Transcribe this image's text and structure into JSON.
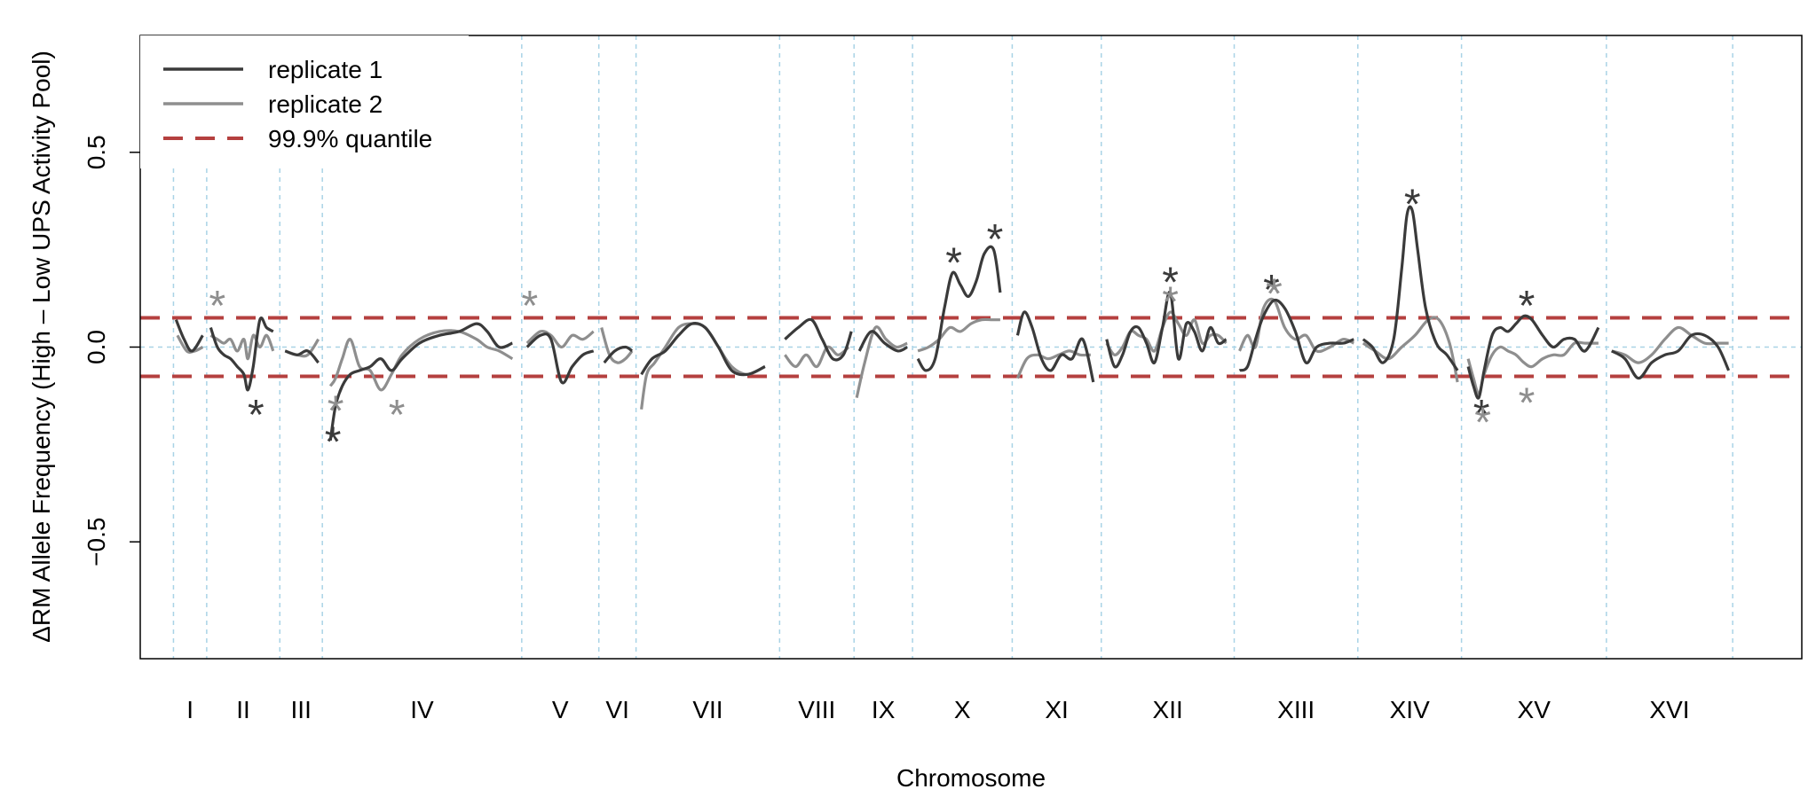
{
  "chart_data": {
    "type": "line",
    "xlabel": "Chromosome",
    "ylabel": "ΔRM Allele Frequency (High – Low UPS Activity Pool)",
    "ylim": [
      -0.8,
      0.8
    ],
    "yticks": [
      -0.5,
      0.0,
      0.5
    ],
    "ytick_labels": [
      "−0.5",
      "0.0",
      "0.5"
    ],
    "threshold": 0.075,
    "colors": {
      "replicate_1": "#3a3a3a",
      "replicate_2": "#8e8e8e",
      "quantile": "#b5403f",
      "chrom_divider": "#a9d3e6",
      "zero_line": "#a9d3e6"
    },
    "legend": {
      "position": "top-left",
      "entries": [
        {
          "label": "replicate 1",
          "style": "solid",
          "color": "#3a3a3a"
        },
        {
          "label": "replicate 2",
          "style": "solid",
          "color": "#8e8e8e"
        },
        {
          "label": "99.9% quantile",
          "style": "dashed",
          "color": "#b5403f"
        }
      ]
    },
    "chromosomes": [
      {
        "name": "I",
        "start": 0.0,
        "end": 0.25
      },
      {
        "name": "II",
        "start": 0.25,
        "end": 0.8
      },
      {
        "name": "III",
        "start": 0.8,
        "end": 1.12
      },
      {
        "name": "IV",
        "start": 1.12,
        "end": 2.62
      },
      {
        "name": "V",
        "start": 2.62,
        "end": 3.2
      },
      {
        "name": "VI",
        "start": 3.2,
        "end": 3.48
      },
      {
        "name": "VII",
        "start": 3.48,
        "end": 4.56
      },
      {
        "name": "VIII",
        "start": 4.56,
        "end": 5.12
      },
      {
        "name": "IX",
        "start": 5.12,
        "end": 5.56
      },
      {
        "name": "X",
        "start": 5.56,
        "end": 6.31
      },
      {
        "name": "XI",
        "start": 6.31,
        "end": 6.98
      },
      {
        "name": "XII",
        "start": 6.98,
        "end": 7.98
      },
      {
        "name": "XIII",
        "start": 7.98,
        "end": 8.91
      },
      {
        "name": "XIV",
        "start": 8.91,
        "end": 9.69
      },
      {
        "name": "XV",
        "start": 9.69,
        "end": 10.78
      },
      {
        "name": "XVI",
        "start": 10.78,
        "end": 11.73
      }
    ],
    "series": [
      {
        "name": "replicate 1",
        "color": "#3a3a3a",
        "chromosomes": [
          {
            "x": [
              0.02,
              0.08,
              0.14,
              0.22
            ],
            "y": [
              0.07,
              0.02,
              -0.01,
              0.03
            ]
          },
          {
            "x": [
              0.28,
              0.33,
              0.38,
              0.43,
              0.48,
              0.53,
              0.56,
              0.6,
              0.65,
              0.7,
              0.75
            ],
            "y": [
              0.05,
              0.0,
              -0.02,
              -0.03,
              -0.05,
              -0.07,
              -0.11,
              -0.05,
              0.07,
              0.05,
              0.04
            ]
          },
          {
            "x": [
              0.84,
              0.93,
              1.01,
              1.09
            ],
            "y": [
              -0.01,
              -0.02,
              -0.01,
              -0.04
            ]
          },
          {
            "x": [
              1.18,
              1.22,
              1.27,
              1.33,
              1.4,
              1.48,
              1.56,
              1.64,
              1.72,
              1.85,
              2.0,
              2.15,
              2.28,
              2.36,
              2.45,
              2.55
            ],
            "y": [
              -0.24,
              -0.15,
              -0.1,
              -0.07,
              -0.06,
              -0.05,
              -0.03,
              -0.06,
              -0.03,
              0.01,
              0.03,
              0.04,
              0.06,
              0.04,
              0.0,
              0.01
            ]
          },
          {
            "x": [
              2.66,
              2.76,
              2.84,
              2.92,
              3.0,
              3.08,
              3.16
            ],
            "y": [
              0.0,
              0.03,
              0.02,
              -0.09,
              -0.05,
              -0.02,
              -0.01
            ]
          },
          {
            "x": [
              3.24,
              3.32,
              3.4,
              3.45
            ],
            "y": [
              -0.04,
              -0.01,
              0.0,
              -0.01
            ]
          },
          {
            "x": [
              3.52,
              3.6,
              3.7,
              3.8,
              3.9,
              4.0,
              4.1,
              4.2,
              4.32,
              4.45
            ],
            "y": [
              -0.07,
              -0.03,
              -0.01,
              0.03,
              0.06,
              0.05,
              0.0,
              -0.06,
              -0.07,
              -0.05
            ]
          },
          {
            "x": [
              4.6,
              4.7,
              4.8,
              4.88,
              4.96,
              5.04,
              5.1
            ],
            "y": [
              0.02,
              0.05,
              0.07,
              0.02,
              -0.03,
              -0.02,
              0.04
            ]
          },
          {
            "x": [
              5.16,
              5.25,
              5.35,
              5.45,
              5.52
            ],
            "y": [
              -0.01,
              0.04,
              0.01,
              -0.01,
              0.0
            ]
          },
          {
            "x": [
              5.6,
              5.66,
              5.73,
              5.8,
              5.86,
              5.92,
              5.98,
              6.04,
              6.1,
              6.17,
              6.22
            ],
            "y": [
              -0.03,
              -0.06,
              -0.03,
              0.1,
              0.19,
              0.16,
              0.13,
              0.17,
              0.24,
              0.25,
              0.14
            ]
          },
          {
            "x": [
              6.35,
              6.4,
              6.46,
              6.53,
              6.6,
              6.68,
              6.76,
              6.84,
              6.92
            ],
            "y": [
              0.03,
              0.09,
              0.05,
              -0.03,
              -0.06,
              -0.02,
              -0.03,
              0.02,
              -0.09
            ]
          },
          {
            "x": [
              7.02,
              7.08,
              7.14,
              7.2,
              7.26,
              7.32,
              7.38,
              7.44,
              7.5,
              7.56,
              7.62,
              7.68,
              7.74,
              7.8,
              7.86,
              7.92
            ],
            "y": [
              0.02,
              -0.05,
              -0.02,
              0.04,
              0.05,
              0.01,
              -0.04,
              0.05,
              0.14,
              -0.03,
              0.06,
              0.04,
              -0.01,
              0.05,
              0.01,
              0.02
            ]
          },
          {
            "x": [
              8.02,
              8.08,
              8.14,
              8.2,
              8.28,
              8.36,
              8.44,
              8.52,
              8.6,
              8.7,
              8.8,
              8.88
            ],
            "y": [
              -0.06,
              -0.05,
              0.02,
              0.08,
              0.12,
              0.1,
              0.04,
              -0.04,
              0.0,
              0.01,
              0.01,
              0.02
            ]
          },
          {
            "x": [
              8.95,
              9.02,
              9.1,
              9.18,
              9.24,
              9.28,
              9.32,
              9.36,
              9.42,
              9.5,
              9.58,
              9.66
            ],
            "y": [
              0.02,
              0.0,
              -0.04,
              0.02,
              0.2,
              0.34,
              0.35,
              0.25,
              0.1,
              0.01,
              -0.02,
              -0.06
            ]
          },
          {
            "x": [
              9.74,
              9.78,
              9.82,
              9.86,
              9.92,
              9.98,
              10.04,
              10.1,
              10.16,
              10.22,
              10.3,
              10.38,
              10.46,
              10.54,
              10.62,
              10.72
            ],
            "y": [
              -0.05,
              -0.1,
              -0.13,
              -0.06,
              0.03,
              0.05,
              0.04,
              0.06,
              0.08,
              0.07,
              0.03,
              0.0,
              0.02,
              0.02,
              -0.01,
              0.05
            ]
          },
          {
            "x": [
              10.82,
              10.92,
              11.02,
              11.12,
              11.22,
              11.32,
              11.42,
              11.52,
              11.62,
              11.7
            ],
            "y": [
              -0.01,
              -0.03,
              -0.08,
              -0.04,
              -0.02,
              -0.01,
              0.03,
              0.03,
              0.0,
              -0.06
            ]
          }
        ]
      },
      {
        "name": "replicate 2",
        "color": "#8e8e8e",
        "chromosomes": [
          {
            "x": [
              0.03,
              0.1,
              0.16,
              0.22
            ],
            "y": [
              0.03,
              -0.01,
              -0.01,
              0.0
            ]
          },
          {
            "x": [
              0.28,
              0.33,
              0.38,
              0.43,
              0.48,
              0.53,
              0.56,
              0.6,
              0.65,
              0.7,
              0.75
            ],
            "y": [
              0.03,
              0.02,
              0.01,
              0.02,
              -0.01,
              0.02,
              -0.03,
              0.03,
              0.0,
              0.03,
              -0.01
            ]
          },
          {
            "x": [
              0.84,
              0.93,
              1.01,
              1.09
            ],
            "y": [
              -0.01,
              -0.02,
              -0.02,
              0.02
            ]
          },
          {
            "x": [
              1.18,
              1.22,
              1.27,
              1.33,
              1.4,
              1.48,
              1.56,
              1.64,
              1.72,
              1.85,
              2.0,
              2.15,
              2.28,
              2.36,
              2.45,
              2.55
            ],
            "y": [
              -0.1,
              -0.08,
              -0.03,
              0.02,
              -0.05,
              -0.06,
              -0.11,
              -0.07,
              -0.02,
              0.02,
              0.04,
              0.04,
              0.02,
              0.0,
              -0.01,
              -0.03
            ]
          },
          {
            "x": [
              2.66,
              2.76,
              2.84,
              2.92,
              3.0,
              3.08,
              3.16
            ],
            "y": [
              0.01,
              0.04,
              0.03,
              0.0,
              0.03,
              0.02,
              0.04
            ]
          },
          {
            "x": [
              3.22,
              3.28,
              3.34,
              3.4,
              3.45
            ],
            "y": [
              0.05,
              -0.02,
              -0.04,
              -0.03,
              -0.01
            ]
          },
          {
            "x": [
              3.52,
              3.56,
              3.62,
              3.7,
              3.8,
              3.9,
              4.0,
              4.1,
              4.2,
              4.32,
              4.45
            ],
            "y": [
              -0.16,
              -0.07,
              -0.04,
              0.0,
              0.05,
              0.06,
              0.05,
              0.0,
              -0.05,
              -0.07,
              -0.05
            ]
          },
          {
            "x": [
              4.6,
              4.68,
              4.76,
              4.84,
              4.92,
              5.0,
              5.08
            ],
            "y": [
              -0.02,
              -0.05,
              -0.02,
              -0.05,
              0.0,
              -0.02,
              0.0
            ]
          },
          {
            "x": [
              5.14,
              5.2,
              5.28,
              5.36,
              5.44,
              5.52
            ],
            "y": [
              -0.13,
              -0.04,
              0.05,
              0.02,
              0.0,
              0.01
            ]
          },
          {
            "x": [
              5.6,
              5.68,
              5.76,
              5.84,
              5.92,
              6.0,
              6.08,
              6.16,
              6.22
            ],
            "y": [
              -0.01,
              0.0,
              0.02,
              0.05,
              0.04,
              0.06,
              0.07,
              0.07,
              0.07
            ]
          },
          {
            "x": [
              6.35,
              6.42,
              6.5,
              6.58,
              6.66,
              6.74,
              6.82,
              6.9
            ],
            "y": [
              -0.08,
              -0.03,
              -0.02,
              -0.03,
              -0.02,
              -0.01,
              -0.02,
              -0.02
            ]
          },
          {
            "x": [
              7.02,
              7.08,
              7.14,
              7.2,
              7.26,
              7.32,
              7.38,
              7.44,
              7.5,
              7.56,
              7.62,
              7.68,
              7.74,
              7.8,
              7.86,
              7.92
            ],
            "y": [
              0.01,
              -0.02,
              0.0,
              0.04,
              0.03,
              0.02,
              -0.01,
              0.05,
              0.09,
              0.06,
              0.03,
              0.07,
              0.01,
              0.03,
              0.03,
              0.01
            ]
          },
          {
            "x": [
              8.02,
              8.08,
              8.14,
              8.2,
              8.28,
              8.36,
              8.44,
              8.52,
              8.6,
              8.7,
              8.8,
              8.88
            ],
            "y": [
              -0.01,
              0.03,
              0.0,
              0.1,
              0.12,
              0.05,
              0.02,
              0.03,
              -0.01,
              0.0,
              0.02,
              0.01
            ]
          },
          {
            "x": [
              8.95,
              9.04,
              9.14,
              9.24,
              9.34,
              9.44,
              9.52,
              9.6,
              9.66
            ],
            "y": [
              0.01,
              -0.01,
              -0.03,
              0.0,
              0.03,
              0.07,
              0.07,
              0.01,
              -0.09
            ]
          },
          {
            "x": [
              9.74,
              9.78,
              9.82,
              9.86,
              9.92,
              9.98,
              10.04,
              10.1,
              10.16,
              10.22,
              10.3,
              10.38,
              10.46,
              10.54,
              10.62,
              10.72
            ],
            "y": [
              -0.03,
              -0.08,
              -0.12,
              -0.07,
              -0.02,
              0.0,
              -0.01,
              -0.02,
              -0.04,
              -0.05,
              -0.03,
              -0.02,
              -0.02,
              0.01,
              0.01,
              0.01
            ]
          },
          {
            "x": [
              10.82,
              10.92,
              11.02,
              11.12,
              11.22,
              11.32,
              11.42,
              11.52,
              11.62,
              11.7
            ],
            "y": [
              -0.01,
              -0.02,
              -0.04,
              -0.02,
              0.02,
              0.05,
              0.03,
              0.01,
              0.01,
              0.01
            ]
          }
        ]
      }
    ],
    "annotations": [
      {
        "text": "*",
        "x": 0.33,
        "y": 0.12,
        "series": "replicate 2"
      },
      {
        "text": "*",
        "x": 0.62,
        "y": -0.16,
        "series": "replicate 1"
      },
      {
        "text": "*",
        "x": 1.2,
        "y": -0.23,
        "series": "replicate 1"
      },
      {
        "text": "*",
        "x": 1.22,
        "y": -0.15,
        "series": "replicate 2"
      },
      {
        "text": "*",
        "x": 1.68,
        "y": -0.16,
        "series": "replicate 2"
      },
      {
        "text": "*",
        "x": 2.68,
        "y": 0.12,
        "series": "replicate 2"
      },
      {
        "text": "*",
        "x": 5.87,
        "y": 0.23,
        "series": "replicate 1"
      },
      {
        "text": "*",
        "x": 6.18,
        "y": 0.29,
        "series": "replicate 1"
      },
      {
        "text": "*",
        "x": 7.5,
        "y": 0.18,
        "series": "replicate 1"
      },
      {
        "text": "*",
        "x": 7.5,
        "y": 0.13,
        "series": "replicate 2"
      },
      {
        "text": "*",
        "x": 8.26,
        "y": 0.16,
        "series": "replicate 1"
      },
      {
        "text": "*",
        "x": 8.28,
        "y": 0.15,
        "series": "replicate 2"
      },
      {
        "text": "*",
        "x": 9.32,
        "y": 0.38,
        "series": "replicate 1"
      },
      {
        "text": "*",
        "x": 9.84,
        "y": -0.16,
        "series": "replicate 1"
      },
      {
        "text": "*",
        "x": 9.85,
        "y": -0.18,
        "series": "replicate 2"
      },
      {
        "text": "*",
        "x": 10.18,
        "y": 0.12,
        "series": "replicate 1"
      },
      {
        "text": "*",
        "x": 10.18,
        "y": -0.13,
        "series": "replicate 2"
      }
    ]
  }
}
